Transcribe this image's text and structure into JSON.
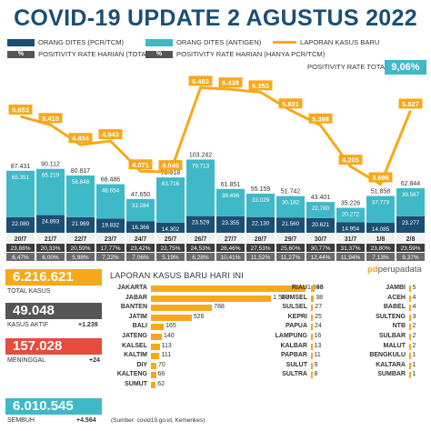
{
  "title": "COVID-19 UPDATE 2 AGUSTUS 2022",
  "legend": {
    "pcr": "ORANG DITES (PCR/TCM)",
    "antigen": "ORANG DITES (ANTIGEN)",
    "kasus": "LAPORAN KASUS BARU",
    "pos_total": "POSITIVITY RATE HARIAN (TOTAL)",
    "pos_pcr": "POSITIVITY RATE HARIAN (HANYA PCR/TCM)",
    "pos_rate_total": "POSITIVITY RATE TOTAL",
    "pct_symbol": "%"
  },
  "positivity_rate_total": "9,06%",
  "colors": {
    "pcr": "#1a4f73",
    "antigen": "#3fb9c7",
    "line": "#f7a81b",
    "neg": "#e74c3c",
    "dark": "#555555"
  },
  "chart_data": {
    "type": "bar",
    "categories": [
      "20/7",
      "21/7",
      "22/7",
      "23/7",
      "24/7",
      "25/7",
      "26/7",
      "27/7",
      "28/7",
      "29/7",
      "30/7",
      "31/7",
      "1/8",
      "2/8"
    ],
    "series": [
      {
        "name": "ORANG DITES (PCR/TCM)",
        "values": [
          22080,
          24893,
          21969,
          19832,
          16366,
          14302,
          23529,
          23355,
          22130,
          21560,
          20621,
          14954,
          14085,
          23277
        ],
        "labels": [
          "22.080",
          "24.893",
          "21.969",
          "19.832",
          "16.366",
          "14.302",
          "23.529",
          "23.355",
          "22.130",
          "21.560",
          "20.621",
          "14.954",
          "14.085",
          "23.277"
        ]
      },
      {
        "name": "ORANG DITES (ANTIGEN)",
        "values": [
          65351,
          65219,
          58848,
          48654,
          31284,
          63716,
          79713,
          38496,
          33029,
          30182,
          22780,
          20272,
          37773,
          39567
        ],
        "labels": [
          "65.351",
          "65.219",
          "58.848",
          "48.654",
          "31.284",
          "63.716",
          "79.713",
          "38.496",
          "33.029",
          "30.182",
          "22.780",
          "20.272",
          "37.773",
          "39.567"
        ]
      },
      {
        "name": "LAPORAN KASUS BARU",
        "values": [
          5653,
          5410,
          4834,
          4943,
          4071,
          4048,
          6483,
          6438,
          6353,
          5831,
          5398,
          4205,
          3696,
          5827
        ],
        "labels": [
          "5.653",
          "5.410",
          "4.834",
          "4.943",
          "4.071",
          "4.048",
          "6.483",
          "6.438",
          "6.353",
          "5.831",
          "5.398",
          "4.205",
          "3.696",
          "5.827"
        ]
      }
    ],
    "totals": [
      "87.431",
      "90.112",
      "80.817",
      "68.486",
      "47.650",
      "78.018",
      "103.242",
      "61.851",
      "55.159",
      "51.742",
      "43.401",
      "35.226",
      "51.858",
      "62.844"
    ],
    "total_values": [
      87431,
      90112,
      80817,
      68486,
      47650,
      78018,
      103242,
      61851,
      55159,
      51742,
      43401,
      35226,
      51858,
      62844
    ],
    "positivity_total": [
      "23,88%",
      "20,33%",
      "20,59%",
      "17,77%",
      "23,42%",
      "22,75%",
      "24,53%",
      "26,46%",
      "27,53%",
      "25,60%",
      "30,77%",
      "31,37%",
      "23,80%",
      "23,59%"
    ],
    "positivity_pcr": [
      "6,47%",
      "6,00%",
      "5,98%",
      "7,22%",
      "7,06%",
      "5,19%",
      "6,28%",
      "10,41%",
      "11,52%",
      "11,27%",
      "12,44%",
      "11,94%",
      "7,13%",
      "9,37%"
    ]
  },
  "stats": {
    "total_kasus": {
      "value": "6.216.621",
      "label": "TOTAL KASUS",
      "color": "#f7a81b"
    },
    "kasus_aktif": {
      "value": "49.048",
      "label": "KASUS AKTIF",
      "change": "+1.239",
      "color": "#555555"
    },
    "meninggal": {
      "value": "157.028",
      "label": "MENINGGAL",
      "change": "+24",
      "color": "#e74c3c"
    },
    "sembuh": {
      "value": "6.010.545",
      "label": "SEMBUH",
      "change": "+4.564",
      "color": "#3fb9c7"
    }
  },
  "daily_section": {
    "title": "LAPORAN KASUS BARU HARI INI",
    "logo_prefix": "pd",
    "logo_text": "perupadata",
    "source": "(Sumber: covid19.go.id, Kemenkes)",
    "col1": [
      {
        "name": "JAKARTA",
        "value": 1993,
        "label": "1.993"
      },
      {
        "name": "JABAR",
        "value": 1549,
        "label": "1.549"
      },
      {
        "name": "BANTEN",
        "value": 788,
        "label": "788"
      },
      {
        "name": "JATIM",
        "value": 526,
        "label": "526"
      },
      {
        "name": "BALI",
        "value": 165,
        "label": "165"
      },
      {
        "name": "JATENG",
        "value": 140,
        "label": "140"
      },
      {
        "name": "KALSEL",
        "value": 113,
        "label": "113"
      },
      {
        "name": "KALTIM",
        "value": 111,
        "label": "111"
      },
      {
        "name": "DIY",
        "value": 70,
        "label": "70"
      },
      {
        "name": "KALTENG",
        "value": 66,
        "label": "66"
      },
      {
        "name": "SUMUT",
        "value": 62,
        "label": "62"
      }
    ],
    "col2": [
      {
        "name": "RIAU",
        "value": 46,
        "label": "46"
      },
      {
        "name": "SUMSEL",
        "value": 38,
        "label": "38"
      },
      {
        "name": "SULSEL",
        "value": 27,
        "label": "27"
      },
      {
        "name": "KEPRI",
        "value": 25,
        "label": "25"
      },
      {
        "name": "PAPUA",
        "value": 24,
        "label": "24"
      },
      {
        "name": "LAMPUNG",
        "value": 16,
        "label": "16"
      },
      {
        "name": "KALBAR",
        "value": 13,
        "label": "13"
      },
      {
        "name": "PAPBAR",
        "value": 11,
        "label": "11"
      },
      {
        "name": "SULUT",
        "value": 9,
        "label": "9"
      },
      {
        "name": "SULTRA",
        "value": 8,
        "label": "8"
      }
    ],
    "col3": [
      {
        "name": "JAMBI",
        "value": 5,
        "label": "5"
      },
      {
        "name": "ACEH",
        "value": 4,
        "label": "4"
      },
      {
        "name": "BABEL",
        "value": 4,
        "label": "4"
      },
      {
        "name": "SULTENG",
        "value": 3,
        "label": "3"
      },
      {
        "name": "NTB",
        "value": 2,
        "label": "2"
      },
      {
        "name": "SULBAR",
        "value": 2,
        "label": "2"
      },
      {
        "name": "MALUT",
        "value": 2,
        "label": "2"
      },
      {
        "name": "BENGKULU",
        "value": 1,
        "label": "1"
      },
      {
        "name": "KALTARA",
        "value": 1,
        "label": "1"
      },
      {
        "name": "SUMBAR",
        "value": 1,
        "label": "1"
      }
    ]
  }
}
